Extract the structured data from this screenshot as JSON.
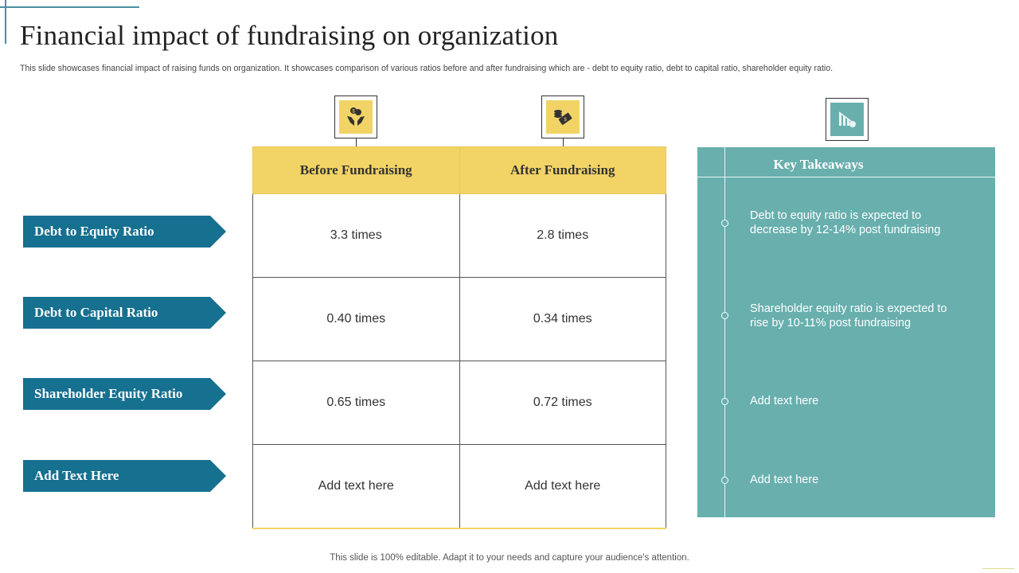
{
  "title": "Financial impact of fundraising on organization",
  "subtitle": "This slide showcases financial impact of raising funds on organization. It showcases comparison of various ratios before and after fundraising which are - debt to equity ratio, debt to capital ratio, shareholder equity ratio.",
  "rows": [
    {
      "label": "Debt to Equity Ratio",
      "before": "3.3 times",
      "after": "2.8 times"
    },
    {
      "label": "Debt to Capital Ratio",
      "before": "0.40 times",
      "after": "0.34 times"
    },
    {
      "label": "Shareholder Equity Ratio",
      "before": "0.65 times",
      "after": "0.72 times"
    },
    {
      "label": "Add Text Here",
      "before": "Add text here",
      "after": "Add text here"
    }
  ],
  "headers": {
    "before": "Before Fundraising",
    "after": "After Fundraising"
  },
  "icons": {
    "before": "hands-coins-icon",
    "after": "money-coins-icon",
    "takeaways": "declining-chart-icon"
  },
  "takeaways": {
    "title": "Key Takeaways",
    "items": [
      "Debt to equity ratio is expected to decrease by 12-14% post fundraising",
      "Shareholder equity ratio is expected to rise by 10-11% post fundraising",
      "Add text here",
      "Add text here"
    ]
  },
  "footer": "This slide is 100% editable. Adapt it to your needs and capture your audience's attention.",
  "colors": {
    "arrow": "#16708f",
    "header_yellow": "#f2d466",
    "panel_teal": "#68afae",
    "accent_line": "#4a8fa3"
  }
}
